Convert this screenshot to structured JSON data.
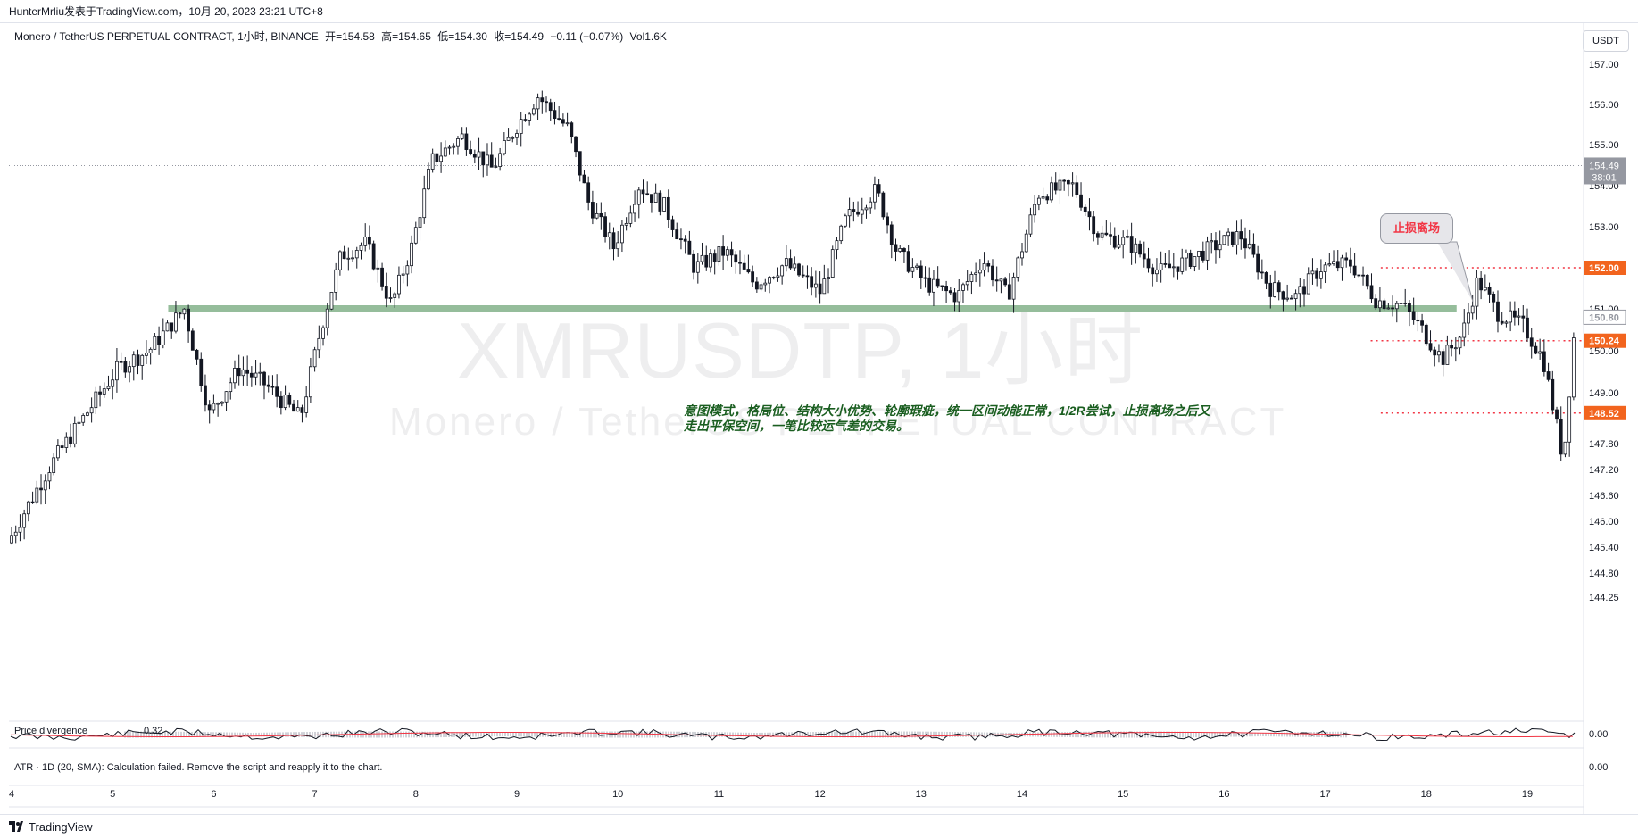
{
  "header": {
    "publish_line": "HunterMrliu发表于TradingView.com，10月 20, 2023 23:21 UTC+8"
  },
  "legend": {
    "symbol": "Monero / TetherUS PERPETUAL CONTRACT, 1小时, BINANCE",
    "open": "开=154.58",
    "high": "高=154.65",
    "low": "低=154.30",
    "close": "收=154.49",
    "change": "−0.11 (−0.07%)",
    "volume": "Vol1.6K"
  },
  "currency": "USDT",
  "watermark": {
    "line1": "XMRUSDTP, 1小时",
    "line2": "Monero / TetherUS PERPETUAL CONTRACT"
  },
  "annotations": {
    "callout": "止损离场",
    "note": "意图模式，格局位、结构大小优势、轮廓瑕疵，统一区间动能正常，1/2R尝试，止损离场之后又走出平保空间，一笔比较运气差的交易。"
  },
  "indicators": {
    "price_divergence_label": "Price divergence",
    "price_divergence_value": "0.32",
    "price_divergence_axis": "0.00",
    "atr_label": "ATR · 1D (20, SMA): Calculation failed. Remove the script and reapply it to the chart.",
    "atr_axis": "0.00"
  },
  "footer": {
    "brand": "TradingView"
  },
  "colors": {
    "up": "#131722",
    "down": "#131722",
    "support_band": "#8fb996",
    "level_line": "#f23645",
    "badge": "#f2641e",
    "note_text": "#1a5e20"
  },
  "chart_data": {
    "type": "candlestick",
    "title": "Monero / TetherUS PERPETUAL CONTRACT, 1小时, BINANCE",
    "x_tick_labels": [
      "4",
      "5",
      "6",
      "7",
      "8",
      "9",
      "10",
      "11",
      "12",
      "13",
      "14",
      "15",
      "16",
      "17",
      "18",
      "19"
    ],
    "y_tick_labels": [
      "157.00",
      "156.00",
      "155.00",
      "154.00",
      "153.00",
      "152.00",
      "151.00",
      "150.00",
      "149.00",
      "147.80",
      "147.20",
      "146.60",
      "146.00",
      "145.40",
      "144.80",
      "144.25"
    ],
    "ylim": [
      143.9,
      157.6
    ],
    "current_price": {
      "value": "154.49",
      "countdown": "38:01"
    },
    "support_band": {
      "value": 151.0,
      "from_day": 5.55,
      "to_day": 18.3
    },
    "levels": [
      {
        "value": 152.0,
        "label": "152.00",
        "from_day": 17.55
      },
      {
        "value": 150.24,
        "label": "150.24",
        "from_day": 17.45
      },
      {
        "value": 148.52,
        "label": "148.52",
        "from_day": 17.55
      }
    ],
    "grey_label": "150.80",
    "candle_path": [
      [
        4.0,
        145.5
      ],
      [
        4.4,
        147.2
      ],
      [
        4.75,
        148.4
      ],
      [
        5.1,
        149.6
      ],
      [
        5.4,
        150.0
      ],
      [
        5.75,
        151.0
      ],
      [
        6.0,
        148.5
      ],
      [
        6.3,
        149.6
      ],
      [
        6.55,
        149.2
      ],
      [
        6.9,
        148.4
      ],
      [
        7.1,
        150.5
      ],
      [
        7.3,
        152.3
      ],
      [
        7.55,
        152.6
      ],
      [
        7.8,
        151.1
      ],
      [
        8.0,
        152.5
      ],
      [
        8.2,
        154.6
      ],
      [
        8.5,
        155.2
      ],
      [
        8.8,
        154.4
      ],
      [
        9.05,
        155.5
      ],
      [
        9.25,
        156.2
      ],
      [
        9.55,
        155.4
      ],
      [
        9.75,
        153.6
      ],
      [
        10.0,
        152.5
      ],
      [
        10.25,
        154.0
      ],
      [
        10.5,
        153.5
      ],
      [
        10.8,
        152.0
      ],
      [
        11.1,
        152.4
      ],
      [
        11.4,
        151.6
      ],
      [
        11.7,
        152.1
      ],
      [
        12.05,
        151.4
      ],
      [
        12.3,
        153.2
      ],
      [
        12.6,
        153.9
      ],
      [
        12.8,
        152.4
      ],
      [
        13.1,
        151.6
      ],
      [
        13.4,
        151.3
      ],
      [
        13.65,
        152.2
      ],
      [
        13.9,
        151.3
      ],
      [
        14.2,
        153.8
      ],
      [
        14.55,
        154.0
      ],
      [
        14.8,
        152.8
      ],
      [
        15.1,
        152.6
      ],
      [
        15.4,
        151.9
      ],
      [
        15.7,
        152.2
      ],
      [
        16.0,
        152.6
      ],
      [
        16.2,
        152.8
      ],
      [
        16.5,
        151.5
      ],
      [
        16.75,
        151.3
      ],
      [
        17.0,
        152.0
      ],
      [
        17.3,
        152.1
      ],
      [
        17.55,
        151.2
      ],
      [
        17.8,
        151.1
      ],
      [
        18.0,
        150.5
      ],
      [
        18.2,
        149.8
      ],
      [
        18.4,
        150.4
      ],
      [
        18.55,
        151.7
      ],
      [
        18.75,
        150.9
      ],
      [
        19.0,
        150.6
      ],
      [
        19.2,
        149.8
      ],
      [
        19.4,
        147.4
      ],
      [
        19.5,
        150.3
      ]
    ]
  }
}
